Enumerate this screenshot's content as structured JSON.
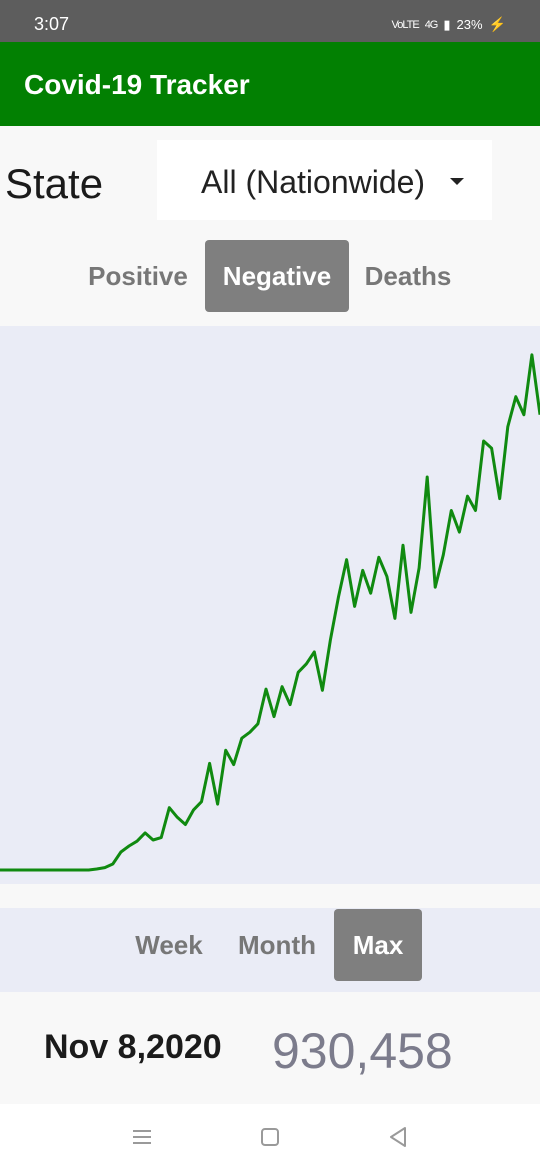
{
  "status_bar": {
    "time": "3:07",
    "network": "VoLTE",
    "signal": "4G",
    "battery": "23%"
  },
  "app_bar": {
    "title": "Covid-19 Tracker"
  },
  "state": {
    "label": "State",
    "selected": "All (Nationwide)"
  },
  "metric_tabs": [
    {
      "label": "Positive",
      "active": false
    },
    {
      "label": "Negative",
      "active": true
    },
    {
      "label": "Deaths",
      "active": false
    }
  ],
  "range_buttons": [
    {
      "label": "Week",
      "active": false
    },
    {
      "label": "Month",
      "active": false
    },
    {
      "label": "Max",
      "active": true
    }
  ],
  "readout": {
    "date": "Nov 8,2020",
    "value": "930,458"
  },
  "colors": {
    "app_bar": "#028002",
    "line": "#108a10",
    "chart_bg": "#eaecf6",
    "active_button": "#7f7f7f"
  },
  "nav_icons": [
    "menu-icon",
    "home-square-icon",
    "back-triangle-icon"
  ],
  "chart_data": {
    "type": "line",
    "title": "",
    "xlabel": "",
    "ylabel": "",
    "x": [
      0,
      8,
      16,
      24,
      32,
      40,
      48,
      56,
      64,
      72,
      80,
      88,
      96,
      104,
      112,
      120,
      128,
      136,
      144,
      152,
      160,
      168,
      176,
      184,
      192,
      200,
      208,
      216,
      224,
      232,
      240,
      248,
      256,
      264,
      272,
      280,
      288,
      296,
      304,
      312,
      320,
      328,
      336,
      344,
      352,
      360,
      368,
      376,
      384,
      392,
      400,
      408,
      416,
      424,
      432,
      440,
      448,
      456,
      464,
      472,
      480,
      488,
      496,
      504,
      512,
      520,
      528,
      536
    ],
    "values": [
      0,
      0,
      0,
      0,
      0,
      0,
      0,
      0,
      0,
      0,
      0,
      0,
      800,
      2000,
      5000,
      15000,
      20000,
      24000,
      31000,
      25000,
      27000,
      52000,
      44000,
      38000,
      50000,
      57000,
      89000,
      55000,
      100000,
      88000,
      110000,
      115000,
      122000,
      151000,
      128000,
      153000,
      138000,
      165000,
      172000,
      182000,
      150000,
      192000,
      228000,
      259000,
      220000,
      250000,
      231000,
      261000,
      245000,
      210000,
      271000,
      215000,
      252000,
      328000,
      236000,
      263000,
      300000,
      282000,
      312000,
      300000,
      358000,
      352000,
      310000,
      370000,
      395000,
      380000,
      430000,
      380000
    ],
    "ylim": [
      0,
      930458
    ]
  }
}
